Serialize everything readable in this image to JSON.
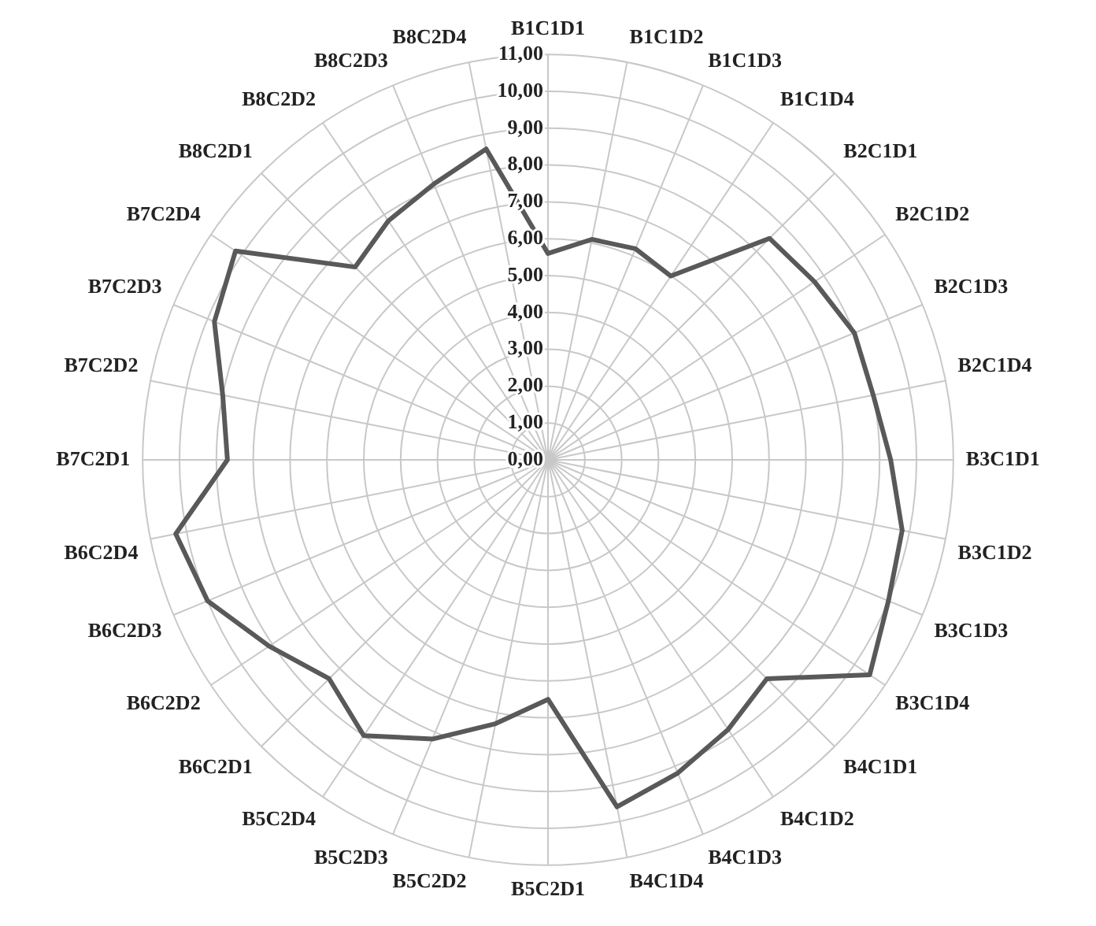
{
  "chart_data": {
    "type": "radar",
    "categories": [
      "B1C1D1",
      "B1C1D2",
      "B1C1D3",
      "B1C1D4",
      "B2C1D1",
      "B2C1D2",
      "B2C1D3",
      "B2C1D4",
      "B3C1D1",
      "B3C1D2",
      "B3C1D3",
      "B3C1D4",
      "B4C1D1",
      "B4C1D2",
      "B4C1D3",
      "B4C1D4",
      "B5C2D1",
      "B5C2D2",
      "B5C2D3",
      "B5C2D4",
      "B6C2D1",
      "B6C2D2",
      "B6C2D3",
      "B6C2D4",
      "B7C2D1",
      "B7C2D2",
      "B7C2D3",
      "B7C2D4",
      "B8C2D1",
      "B8C2D2",
      "B8C2D3",
      "B8C2D4"
    ],
    "series": [
      {
        "color": "#595959",
        "values": [
          5.6,
          6.1,
          6.2,
          6.0,
          8.5,
          8.7,
          9.0,
          9.0,
          9.3,
          9.8,
          10.0,
          10.5,
          8.4,
          8.8,
          9.2,
          9.6,
          6.5,
          7.3,
          8.2,
          9.0,
          8.4,
          9.1,
          10.0,
          10.3,
          8.7,
          9.0,
          9.8,
          10.2,
          7.4,
          7.8,
          8.1,
          8.6
        ]
      }
    ],
    "ylim": [
      0,
      11
    ],
    "yticks": [
      {
        "value": 0,
        "label": "0,00"
      },
      {
        "value": 1,
        "label": "1,00"
      },
      {
        "value": 2,
        "label": "2,00"
      },
      {
        "value": 3,
        "label": "3,00"
      },
      {
        "value": 4,
        "label": "4,00"
      },
      {
        "value": 5,
        "label": "5,00"
      },
      {
        "value": 6,
        "label": "6,00"
      },
      {
        "value": 7,
        "label": "7,00"
      },
      {
        "value": 8,
        "label": "8,00"
      },
      {
        "value": 9,
        "label": "9,00"
      },
      {
        "value": 10,
        "label": "10,00"
      },
      {
        "value": 11,
        "label": "11,00"
      }
    ],
    "grid": true,
    "legend": false,
    "marker": "none",
    "line_style": "solid"
  }
}
